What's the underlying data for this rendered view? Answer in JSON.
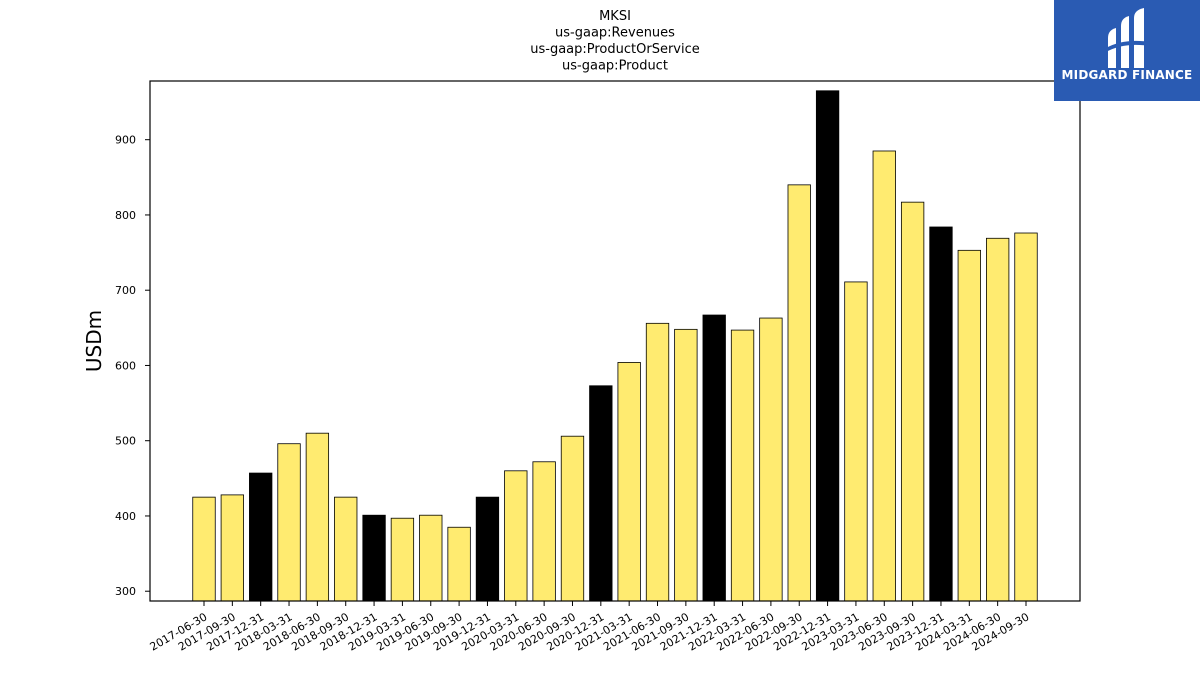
{
  "chart_data": {
    "type": "bar",
    "title_lines": [
      "MKSI",
      "us-gaap:Revenues",
      "us-gaap:ProductOrService",
      "us-gaap:Product"
    ],
    "xlabel": "",
    "ylabel": "USDm",
    "ylim": [
      287,
      978
    ],
    "yticks": [
      300,
      400,
      500,
      600,
      700,
      800,
      900
    ],
    "grid": false,
    "categories": [
      "2017-06-30",
      "2017-09-30",
      "2017-12-31",
      "2018-03-31",
      "2018-06-30",
      "2018-09-30",
      "2018-12-31",
      "2019-03-31",
      "2019-06-30",
      "2019-09-30",
      "2019-12-31",
      "2020-03-31",
      "2020-06-30",
      "2020-09-30",
      "2020-12-31",
      "2021-03-31",
      "2021-06-30",
      "2021-09-30",
      "2021-12-31",
      "2022-03-31",
      "2022-06-30",
      "2022-09-30",
      "2022-12-31",
      "2023-03-31",
      "2023-06-30",
      "2023-09-30",
      "2023-12-31",
      "2024-03-31",
      "2024-06-30",
      "2024-09-30"
    ],
    "values": [
      425,
      428,
      457,
      496,
      510,
      425,
      401,
      397,
      401,
      385,
      425,
      460,
      472,
      506,
      573,
      604,
      656,
      648,
      667,
      647,
      663,
      840,
      965,
      711,
      885,
      817,
      784,
      753,
      769,
      776
    ],
    "highlight": [
      false,
      false,
      true,
      false,
      false,
      false,
      true,
      false,
      false,
      false,
      true,
      false,
      false,
      false,
      true,
      false,
      false,
      false,
      true,
      false,
      false,
      false,
      true,
      false,
      false,
      false,
      true,
      false,
      false,
      false
    ],
    "colors": {
      "normal": "#ffeb70",
      "highlight": "#000000",
      "edge": "#000000"
    }
  },
  "logo": {
    "text": "MIDGARD FINANCE",
    "icon": "midgard-logo-icon",
    "background": "#2a5bb3"
  }
}
